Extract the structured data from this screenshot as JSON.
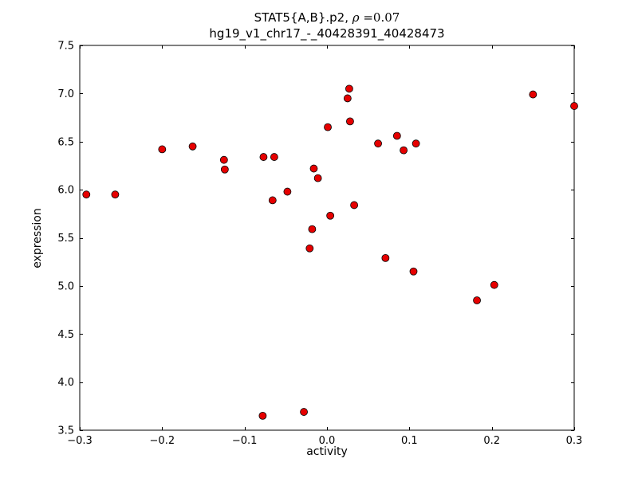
{
  "chart_data": {
    "type": "scatter",
    "title_line1_prefix": "STAT5{A,B}.p2, ",
    "title_rho_symbol": "ρ",
    "title_rho_value": " =0.07",
    "title_line2": "hg19_v1_chr17_-_40428391_40428473",
    "xlabel": "activity",
    "ylabel": "expression",
    "xlim": [
      -0.3,
      0.3
    ],
    "ylim": [
      3.5,
      7.5
    ],
    "xticks": [
      -0.3,
      -0.2,
      -0.1,
      0.0,
      0.1,
      0.2,
      0.3
    ],
    "xtick_labels": [
      "−0.3",
      "−0.2",
      "−0.1",
      "0.0",
      "0.1",
      "0.2",
      "0.3"
    ],
    "yticks": [
      3.5,
      4.0,
      4.5,
      5.0,
      5.5,
      6.0,
      6.5,
      7.0,
      7.5
    ],
    "ytick_labels": [
      "3.5",
      "4.0",
      "4.5",
      "5.0",
      "5.5",
      "6.0",
      "6.5",
      "7.0",
      "7.5"
    ],
    "grid": false,
    "legend": "none",
    "point_color": "#e60000",
    "point_edge_color": "#000000",
    "frame_color": "#000000",
    "points": [
      [
        -0.292,
        5.95
      ],
      [
        -0.257,
        5.95
      ],
      [
        -0.2,
        6.42
      ],
      [
        -0.163,
        6.45
      ],
      [
        -0.125,
        6.31
      ],
      [
        -0.124,
        6.21
      ],
      [
        -0.077,
        6.34
      ],
      [
        -0.064,
        6.34
      ],
      [
        -0.066,
        5.89
      ],
      [
        -0.048,
        5.98
      ],
      [
        -0.016,
        6.22
      ],
      [
        -0.011,
        6.12
      ],
      [
        0.001,
        6.65
      ],
      [
        -0.018,
        5.59
      ],
      [
        -0.021,
        5.39
      ],
      [
        0.004,
        5.73
      ],
      [
        0.027,
        7.05
      ],
      [
        0.025,
        6.95
      ],
      [
        0.028,
        6.71
      ],
      [
        0.033,
        5.84
      ],
      [
        0.062,
        6.48
      ],
      [
        0.071,
        5.29
      ],
      [
        0.085,
        6.56
      ],
      [
        0.093,
        6.41
      ],
      [
        0.108,
        6.48
      ],
      [
        0.105,
        5.15
      ],
      [
        0.182,
        4.85
      ],
      [
        0.203,
        5.01
      ],
      [
        0.25,
        6.99
      ],
      [
        0.3,
        6.87
      ],
      [
        -0.078,
        3.65
      ],
      [
        -0.028,
        3.69
      ]
    ]
  }
}
